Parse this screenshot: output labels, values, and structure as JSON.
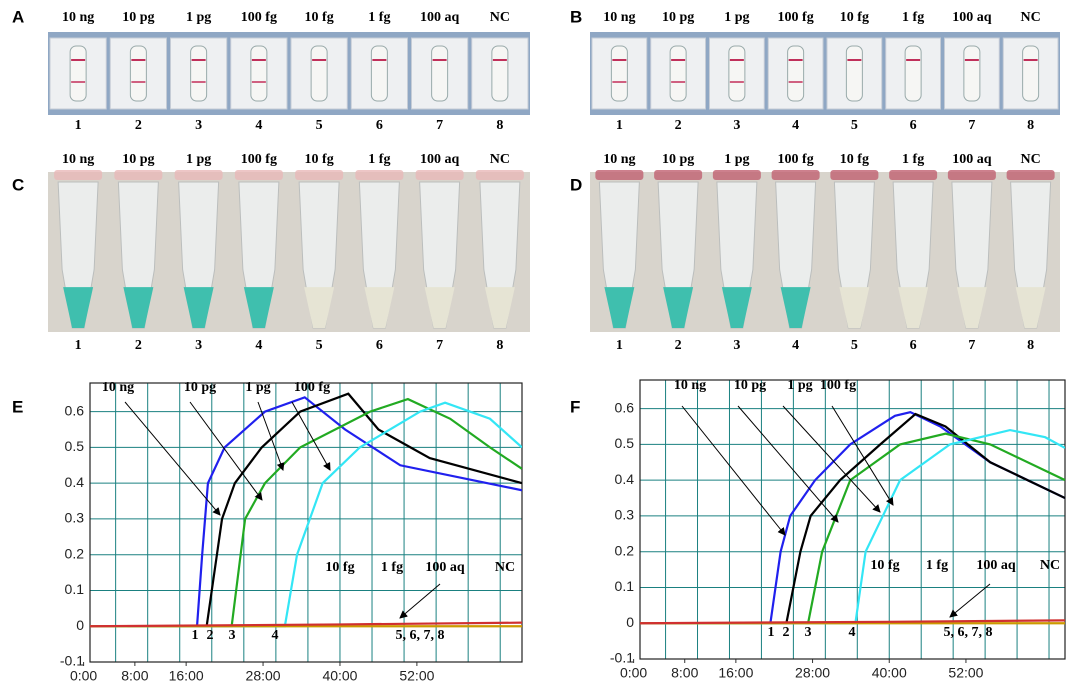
{
  "panels": [
    {
      "letter": "A",
      "top_labels": [
        "10 ng",
        "10 pg",
        "1 pg",
        "100 fg",
        "10 fg",
        "1 fg",
        "100 aq",
        "NC"
      ],
      "bottom_labels": [
        "1",
        "2",
        "3",
        "4",
        "5",
        "6",
        "7",
        "8"
      ]
    },
    {
      "letter": "B",
      "top_labels": [
        "10 ng",
        "10 pg",
        "1 pg",
        "100 fg",
        "10 fg",
        "1 fg",
        "100 aq",
        "NC"
      ],
      "bottom_labels": [
        "1",
        "2",
        "3",
        "4",
        "5",
        "6",
        "7",
        "8"
      ]
    },
    {
      "letter": "C",
      "top_labels": [
        "10 ng",
        "10 pg",
        "1 pg",
        "100 fg",
        "10 fg",
        "1 fg",
        "100 aq",
        "NC"
      ],
      "bottom_labels": [
        "1",
        "2",
        "3",
        "4",
        "5",
        "6",
        "7",
        "8"
      ]
    },
    {
      "letter": "D",
      "top_labels": [
        "10 ng",
        "10 pg",
        "1 pg",
        "100 fg",
        "10 fg",
        "1 fg",
        "100 aq",
        "NC"
      ],
      "bottom_labels": [
        "1",
        "2",
        "3",
        "4",
        "5",
        "6",
        "7",
        "8"
      ]
    }
  ],
  "chart_data": [
    {
      "type": "line",
      "panel_label": "E",
      "xlim": [
        1,
        68.4
      ],
      "ylim": [
        -0.1,
        0.68
      ],
      "xticks": [
        {
          "value": 0,
          "label": "0:00"
        },
        {
          "value": 8,
          "label": "8:00"
        },
        {
          "value": 16,
          "label": "16:00"
        },
        {
          "value": 28,
          "label": "28:00"
        },
        {
          "value": 40,
          "label": "40:00"
        },
        {
          "value": 52,
          "label": "52:00"
        }
      ],
      "yticks": [
        -0.1,
        0,
        0.1,
        0.2,
        0.3,
        0.4,
        0.5,
        0.6
      ],
      "x_gridlines": [
        5,
        10,
        15,
        20,
        25,
        30,
        35,
        40,
        45,
        50,
        55,
        60,
        65
      ],
      "grid": true,
      "annotations": [
        "10 ng",
        "10 pg",
        "1 pg",
        "100 fg",
        "10 fg",
        "1 fg",
        "100 aq",
        "NC",
        "1",
        "2",
        "3",
        "4",
        "5, 6, 7, 8"
      ],
      "series": [
        {
          "color": "#2020ee",
          "x": [
            1,
            10,
            17.7,
            18.5,
            19.4,
            22,
            28.3,
            34.5,
            40.8,
            49.4,
            68.4
          ],
          "values": [
            0,
            0,
            0,
            0.2,
            0.4,
            0.5,
            0.6,
            0.64,
            0.55,
            0.45,
            0.38
          ]
        },
        {
          "color": "#000000",
          "x": [
            1,
            10,
            19.2,
            21.6,
            23.6,
            27.8,
            33.8,
            41.3,
            46,
            54,
            68.4
          ],
          "values": [
            0,
            0,
            0,
            0.3,
            0.4,
            0.5,
            0.6,
            0.65,
            0.55,
            0.47,
            0.4
          ]
        },
        {
          "color": "#22aa22",
          "x": [
            1,
            10,
            23.1,
            25.2,
            28.3,
            33.8,
            44.7,
            50.6,
            57.2,
            63.4,
            68.4
          ],
          "values": [
            0,
            0,
            0,
            0.3,
            0.4,
            0.5,
            0.6,
            0.635,
            0.58,
            0.5,
            0.44
          ]
        },
        {
          "color": "#33e6f5",
          "x": [
            1,
            10,
            31.4,
            33.3,
            37.3,
            43.1,
            52.5,
            56.4,
            63.4,
            68.4
          ],
          "values": [
            0,
            0,
            0,
            0.2,
            0.4,
            0.5,
            0.6,
            0.625,
            0.58,
            0.5
          ]
        },
        {
          "color": "#cc9900",
          "x": [
            1,
            68.4
          ],
          "values": [
            0,
            0
          ]
        },
        {
          "color": "#d03030",
          "x": [
            1,
            40,
            68.4
          ],
          "values": [
            0,
            0.005,
            0.01
          ]
        }
      ]
    },
    {
      "type": "line",
      "panel_label": "F",
      "xlim": [
        1,
        67.5
      ],
      "ylim": [
        -0.1,
        0.68
      ],
      "xticks": [
        {
          "value": 0,
          "label": "0:00"
        },
        {
          "value": 8,
          "label": "8:00"
        },
        {
          "value": 16,
          "label": "16:00"
        },
        {
          "value": 28,
          "label": "28:00"
        },
        {
          "value": 40,
          "label": "40:00"
        },
        {
          "value": 52,
          "label": "52:00"
        }
      ],
      "yticks": [
        -0.1,
        0,
        0.1,
        0.2,
        0.3,
        0.4,
        0.5,
        0.6
      ],
      "x_gridlines": [
        5,
        10,
        15,
        20,
        25,
        30,
        35,
        40,
        45,
        50,
        55,
        60,
        65
      ],
      "grid": true,
      "annotations": [
        "10 ng",
        "10 pg",
        "1 pg",
        "100 fg",
        "10 fg",
        "1 fg",
        "100 aq",
        "NC",
        "1",
        "2",
        "3",
        "4",
        "5, 6, 7, 8"
      ],
      "series": [
        {
          "color": "#2020ee",
          "x": [
            1,
            10,
            21.4,
            23,
            24.5,
            28.4,
            33.9,
            40.9,
            43.3,
            48,
            55.8,
            67.5
          ],
          "values": [
            0,
            0,
            0,
            0.2,
            0.3,
            0.4,
            0.5,
            0.58,
            0.59,
            0.55,
            0.45,
            0.35
          ]
        },
        {
          "color": "#000000",
          "x": [
            1,
            10,
            23.9,
            26.1,
            27.7,
            32.3,
            38.6,
            44.1,
            48.8,
            55.8,
            67.5
          ],
          "values": [
            0,
            0,
            0,
            0.2,
            0.3,
            0.4,
            0.5,
            0.585,
            0.55,
            0.45,
            0.35
          ]
        },
        {
          "color": "#22aa22",
          "x": [
            1,
            10,
            27.3,
            29.5,
            33.9,
            41.7,
            48.8,
            55.8,
            67.5
          ],
          "values": [
            0,
            0,
            0,
            0.2,
            0.4,
            0.5,
            0.53,
            0.5,
            0.4
          ]
        },
        {
          "color": "#33e6f5",
          "x": [
            1,
            10,
            34.7,
            36.3,
            41.7,
            49.5,
            58.9,
            64.4,
            67.5
          ],
          "values": [
            0,
            0,
            0,
            0.2,
            0.4,
            0.5,
            0.54,
            0.52,
            0.49
          ]
        },
        {
          "color": "#cc9900",
          "x": [
            1,
            67.5
          ],
          "values": [
            0,
            0
          ]
        },
        {
          "color": "#d03030",
          "x": [
            1,
            40,
            67.5
          ],
          "values": [
            0,
            0.004,
            0.008
          ]
        }
      ]
    }
  ]
}
